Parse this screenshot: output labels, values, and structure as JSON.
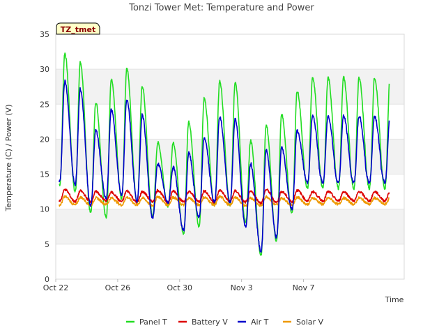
{
  "chart_data": {
    "type": "line",
    "title": "Tonzi Tower Met: Temperature and Power",
    "xlabel": "Time",
    "ylabel": "Temperature (C) / Power (V)",
    "ylim": [
      0,
      35
    ],
    "yticks": [
      0,
      5,
      10,
      15,
      20,
      25,
      30,
      35
    ],
    "xlim": [
      0,
      22.5
    ],
    "xticks": [
      {
        "value": 0,
        "label": "Oct 22"
      },
      {
        "value": 4,
        "label": "Oct 26"
      },
      {
        "value": 8,
        "label": "Oct 30"
      },
      {
        "value": 12,
        "label": "Nov 3"
      },
      {
        "value": 16,
        "label": "Nov 7"
      }
    ],
    "badge": "TZ_tmet",
    "grid": "horizontal-bands",
    "legend_position": "bottom",
    "series": [
      {
        "name": "Panel T",
        "color": "#22dd22",
        "daily_max": [
          32.3,
          31.0,
          25.3,
          28.5,
          30.1,
          27.6,
          19.5,
          19.5,
          22.5,
          25.8,
          28.3,
          28.2,
          19.8,
          22.0,
          23.5,
          26.9,
          28.8
        ],
        "daily_min": [
          13.5,
          12.5,
          9.5,
          8.8,
          11.5,
          11.0,
          9.0,
          10.5,
          6.5,
          7.5,
          10.5,
          10.5,
          8.0,
          3.5,
          5.5,
          9.5,
          13.0
        ]
      },
      {
        "name": "Battery V",
        "color": "#dd0000",
        "daily_max": [
          12.8,
          12.6,
          12.5,
          12.4,
          12.6,
          12.5,
          12.7,
          12.6,
          12.5,
          12.6,
          12.7,
          12.6,
          12.5,
          12.8,
          12.5,
          12.7,
          12.5
        ],
        "daily_min": [
          11.2,
          11.1,
          11.1,
          11.2,
          11.1,
          11.0,
          11.1,
          11.0,
          11.1,
          11.1,
          11.0,
          11.1,
          11.0,
          10.9,
          11.0,
          11.1,
          11.2
        ]
      },
      {
        "name": "Air T",
        "color": "#0000cc",
        "daily_max": [
          28.3,
          27.2,
          21.2,
          24.2,
          25.7,
          23.5,
          16.5,
          16.0,
          18.0,
          20.2,
          23.2,
          22.9,
          16.5,
          18.5,
          18.8,
          21.2,
          23.3
        ],
        "daily_min": [
          14.0,
          13.5,
          10.5,
          11.5,
          12.0,
          11.2,
          8.8,
          11.0,
          7.0,
          8.8,
          11.0,
          11.0,
          7.5,
          4.0,
          6.0,
          10.0,
          13.8
        ]
      },
      {
        "name": "Solar V",
        "color": "#ee9900",
        "daily_max": [
          11.8,
          11.7,
          11.6,
          11.6,
          11.7,
          11.6,
          11.8,
          11.7,
          11.6,
          11.7,
          11.8,
          11.7,
          11.6,
          11.8,
          11.6,
          11.7,
          11.6
        ],
        "daily_min": [
          10.6,
          10.6,
          10.6,
          10.7,
          10.6,
          10.6,
          10.5,
          10.6,
          10.6,
          10.6,
          10.6,
          10.6,
          10.5,
          10.5,
          10.6,
          10.6,
          10.7
        ]
      }
    ]
  }
}
